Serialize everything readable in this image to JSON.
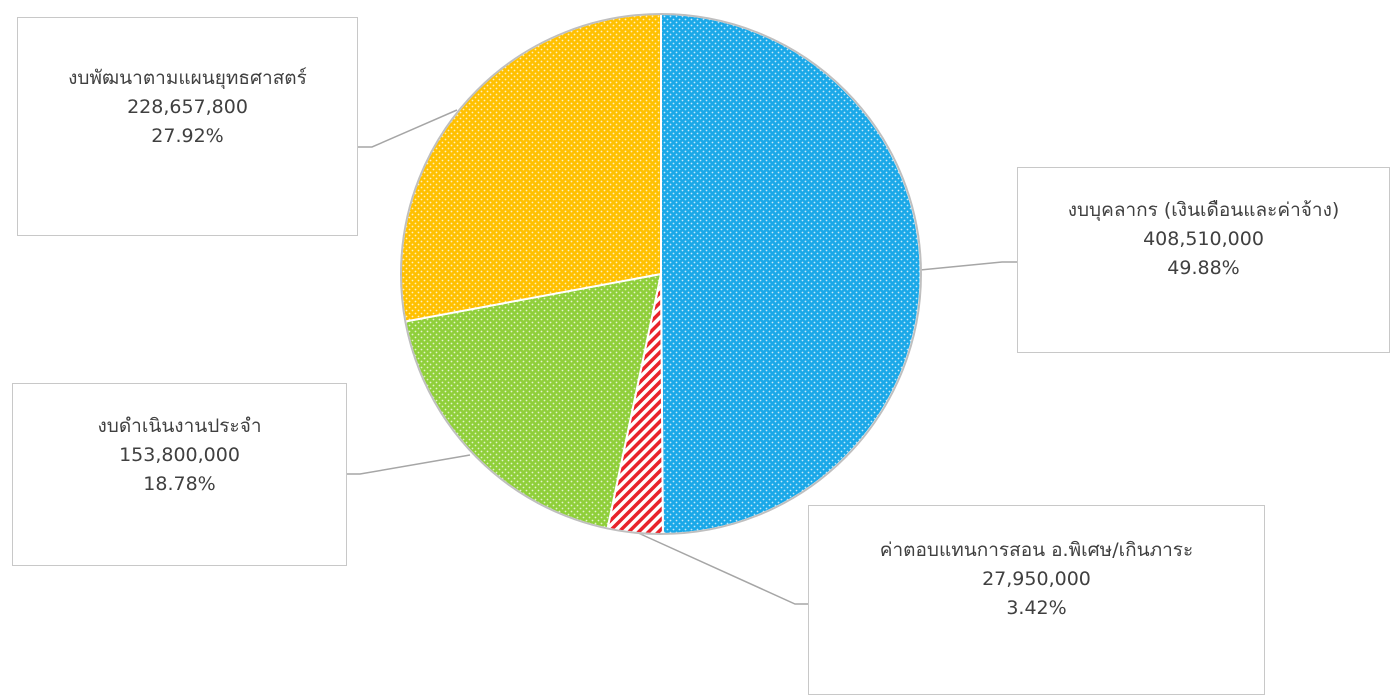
{
  "chart_data": {
    "type": "pie",
    "slices": [
      {
        "label": "งบบุคลากร (เงินเดือนและค่าจ้าง)",
        "value": 408510000,
        "value_text": "408,510,000",
        "percent_text": "49.88%",
        "color": "#1aa8e8",
        "pattern": "dots"
      },
      {
        "label": "ค่าตอบแทนการสอน อ.พิเศษ/เกินภาระ",
        "value": 27950000,
        "value_text": "27,950,000",
        "percent_text": "3.42%",
        "color": "#e8232a",
        "pattern": "diagonal-stripes"
      },
      {
        "label": "งบดำเนินงานประจำ",
        "value": 153800000,
        "value_text": "153,800,000",
        "percent_text": "18.78%",
        "color": "#8fcf3a",
        "pattern": "dots"
      },
      {
        "label": "งบพัฒนาตามแผนยุทธศาสตร์",
        "value": 228657800,
        "value_text": "228,657,800",
        "percent_text": "27.92%",
        "color": "#ffc000",
        "pattern": "dots"
      }
    ],
    "start_angle": "12 o'clock",
    "direction": "clockwise",
    "legend": "none"
  }
}
